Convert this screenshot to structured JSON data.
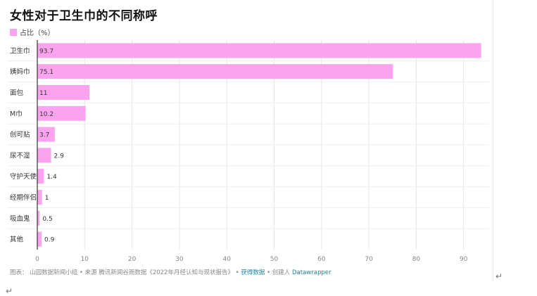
{
  "title": "女性对于卫生巾的不同称呼",
  "legend_label": "占比（%）",
  "footer": {
    "source": "图表： 山园数据新闻小组 • 来源 腾讯新闻谷雨数据《2022年月经认知与现状报告》 • ",
    "get_data": "获得数据",
    "sep": " • 创建人 ",
    "creator": "Datawrapper"
  },
  "colors": {
    "bar": "#fca3f0",
    "axis": "#333333",
    "grid": "#e5e5e5",
    "link": "#1d81a2"
  },
  "chart_data": {
    "type": "bar",
    "orientation": "horizontal",
    "title": "女性对于卫生巾的不同称呼",
    "xlabel": "",
    "ylabel": "",
    "xlim": [
      0,
      95
    ],
    "xticks": [
      0,
      10,
      20,
      30,
      40,
      50,
      60,
      70,
      80,
      90
    ],
    "grid": true,
    "legend": "top-left",
    "series": [
      {
        "name": "占比（%）",
        "color": "#fca3f0"
      }
    ],
    "categories": [
      "卫生巾",
      "姨妈巾",
      "面包",
      "M巾",
      "创可贴",
      "尿不湿",
      "守护天使",
      "经期伴侣",
      "吸血鬼",
      "其他"
    ],
    "values": [
      93.7,
      75.1,
      11,
      10.2,
      3.7,
      2.9,
      1.4,
      1,
      0.5,
      0.9
    ]
  }
}
